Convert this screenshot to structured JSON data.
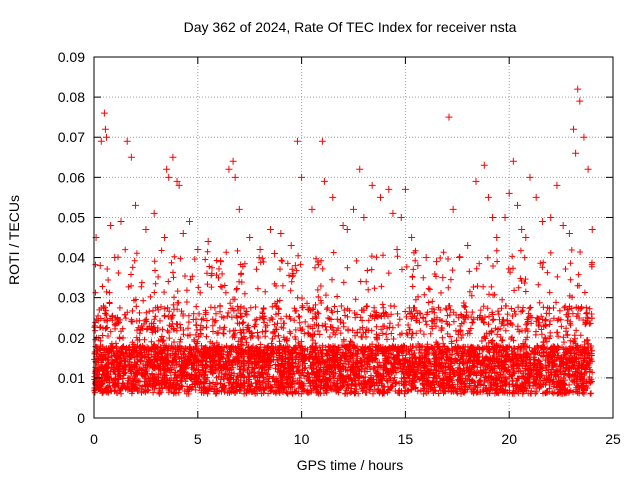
{
  "chart_data": {
    "type": "scatter",
    "title": "Day 362 of 2024, Rate Of TEC Index for receiver nsta",
    "xlabel": "GPS time / hours",
    "ylabel": "ROTI / TECUs",
    "xlim": [
      0,
      25
    ],
    "ylim": [
      0,
      0.09
    ],
    "x_ticks": [
      0,
      5,
      10,
      15,
      20,
      25
    ],
    "x_tick_labels": [
      "0",
      "5",
      "10",
      "15",
      "20",
      "25"
    ],
    "y_ticks": [
      0,
      0.01,
      0.02,
      0.03,
      0.04,
      0.05,
      0.06,
      0.07,
      0.08,
      0.09
    ],
    "y_tick_labels": [
      "0",
      "0.01",
      "0.02",
      "0.03",
      "0.04",
      "0.05",
      "0.06",
      "0.07",
      "0.08",
      "0.09"
    ],
    "grid": true,
    "marker": "plus",
    "color": "#ff0000",
    "series": [
      {
        "name": "ROTI",
        "x": [
          0.1,
          0.3,
          0.35,
          0.5,
          0.55,
          0.6,
          0.8,
          1.0,
          1.3,
          1.6,
          1.8,
          2.0,
          2.5,
          2.9,
          3.4,
          3.5,
          3.6,
          3.8,
          4.0,
          4.1,
          4.3,
          4.6,
          5.0,
          5.5,
          6.1,
          6.5,
          6.7,
          6.8,
          7.0,
          7.5,
          8.0,
          8.5,
          8.7,
          9.0,
          9.5,
          9.7,
          9.8,
          10.0,
          10.5,
          11.0,
          11.1,
          11.5,
          12.0,
          12.2,
          12.5,
          12.8,
          13.0,
          13.4,
          13.8,
          14.2,
          14.4,
          14.6,
          14.8,
          15.0,
          15.3,
          15.6,
          16.0,
          16.5,
          16.8,
          17.1,
          17.3,
          17.6,
          18.0,
          18.4,
          18.8,
          19.0,
          19.2,
          19.4,
          19.8,
          20.0,
          20.2,
          20.4,
          20.6,
          20.8,
          21.0,
          21.3,
          21.6,
          22.0,
          22.3,
          22.6,
          22.9,
          23.1,
          23.2,
          23.3,
          23.4,
          23.6,
          23.8,
          24.0
        ],
        "y": [
          0.045,
          0.038,
          0.069,
          0.076,
          0.072,
          0.07,
          0.048,
          0.04,
          0.049,
          0.069,
          0.065,
          0.053,
          0.047,
          0.051,
          0.045,
          0.062,
          0.06,
          0.065,
          0.059,
          0.058,
          0.046,
          0.049,
          0.042,
          0.044,
          0.039,
          0.062,
          0.064,
          0.06,
          0.052,
          0.045,
          0.042,
          0.047,
          0.041,
          0.046,
          0.043,
          0.038,
          0.069,
          0.06,
          0.052,
          0.069,
          0.059,
          0.055,
          0.048,
          0.047,
          0.052,
          0.062,
          0.05,
          0.058,
          0.055,
          0.057,
          0.051,
          0.042,
          0.05,
          0.057,
          0.045,
          0.038,
          0.04,
          0.039,
          0.035,
          0.075,
          0.052,
          0.04,
          0.043,
          0.059,
          0.063,
          0.055,
          0.05,
          0.045,
          0.05,
          0.056,
          0.064,
          0.053,
          0.047,
          0.045,
          0.06,
          0.055,
          0.049,
          0.05,
          0.058,
          0.048,
          0.046,
          0.072,
          0.066,
          0.082,
          0.079,
          0.07,
          0.062,
          0.047
        ]
      }
    ]
  }
}
